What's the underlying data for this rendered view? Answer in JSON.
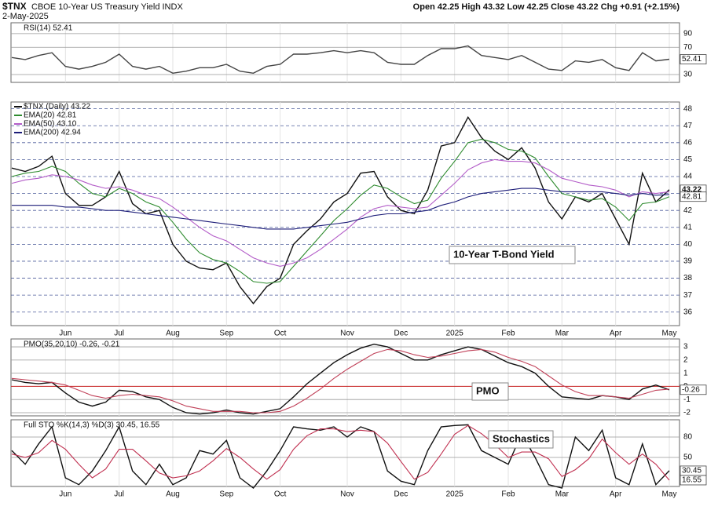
{
  "header": {
    "symbol": "$TNX",
    "name": "CBOE 10-Year US Treasury Yield INDX",
    "date": "2-May-2025",
    "quote": "Open 42.25  High 43.32  Low 42.25  Close 43.22  Chg +0.91 (+2.15%)"
  },
  "chart_data": [
    {
      "type": "line",
      "title": "RSI(14) 52.41",
      "ylim": [
        18.5,
        106
      ],
      "yticks": [
        30,
        70,
        90
      ],
      "grid": true,
      "series": [
        {
          "color": "#444444",
          "label_last": true,
          "values": [
            55,
            52,
            58,
            62,
            42,
            38,
            42,
            48,
            60,
            42,
            38,
            42,
            32,
            35,
            40,
            40,
            45,
            35,
            32,
            42,
            45,
            60,
            60,
            62,
            65,
            62,
            65,
            62,
            48,
            45,
            45,
            58,
            68,
            68,
            72,
            58,
            55,
            52,
            58,
            48,
            38,
            36,
            50,
            48,
            52,
            40,
            36,
            62,
            50,
            52.41
          ]
        }
      ]
    },
    {
      "type": "line",
      "ylim": [
        35.2,
        48.4
      ],
      "yticks": [
        36,
        37,
        38,
        39,
        40,
        41,
        42,
        43,
        44,
        45,
        46,
        47,
        48
      ],
      "grid": true,
      "categories": [
        null,
        null,
        null,
        null,
        "Jun",
        null,
        null,
        null,
        "Jul",
        null,
        null,
        null,
        "Aug",
        null,
        null,
        null,
        "Sep",
        null,
        null,
        null,
        "Oct",
        null,
        null,
        null,
        null,
        "Nov",
        null,
        null,
        null,
        "Dec",
        null,
        null,
        null,
        "2025",
        null,
        null,
        null,
        "Feb",
        null,
        null,
        null,
        "Mar",
        null,
        null,
        null,
        "Apr",
        null,
        null,
        null,
        "May"
      ],
      "annotation": "10-Year T-Bond Yield",
      "series": [
        {
          "name": "$TNX (Daily) 43.22",
          "color": "#111111",
          "label_last": true,
          "values": [
            44.5,
            44.3,
            44.6,
            45.2,
            43.0,
            42.3,
            42.3,
            42.8,
            44.3,
            42.4,
            41.8,
            42.0,
            40.0,
            39.0,
            38.6,
            38.5,
            38.9,
            37.5,
            36.5,
            37.5,
            38.0,
            40.0,
            40.8,
            41.5,
            42.5,
            43.0,
            44.2,
            44.3,
            42.8,
            42.0,
            41.8,
            43.2,
            45.8,
            46.0,
            47.5,
            46.3,
            45.5,
            45.0,
            45.7,
            44.5,
            42.5,
            41.5,
            42.8,
            42.5,
            43.0,
            41.5,
            40.0,
            44.2,
            42.5,
            43.22
          ]
        },
        {
          "name": "EMA(20) 42.81",
          "color": "#2e8b2e",
          "label_last": true,
          "values": [
            44.0,
            44.2,
            44.3,
            44.6,
            44.3,
            43.6,
            43.0,
            42.8,
            43.3,
            43.0,
            42.5,
            42.2,
            41.3,
            40.3,
            39.5,
            39.1,
            38.9,
            38.4,
            37.8,
            37.7,
            37.8,
            38.7,
            39.6,
            40.5,
            41.4,
            42.1,
            42.9,
            43.5,
            43.3,
            42.8,
            42.4,
            42.6,
            43.9,
            44.9,
            46.0,
            46.2,
            46.0,
            45.6,
            45.5,
            45.1,
            44.0,
            43.0,
            42.8,
            42.6,
            42.7,
            42.2,
            41.4,
            42.4,
            42.5,
            42.81
          ]
        },
        {
          "name": "EMA(50) 43.10",
          "color": "#b35cc8",
          "values": [
            43.6,
            43.8,
            43.9,
            44.1,
            44.0,
            43.8,
            43.5,
            43.3,
            43.4,
            43.2,
            42.9,
            42.7,
            42.2,
            41.6,
            41.0,
            40.5,
            40.2,
            39.7,
            39.2,
            38.9,
            38.7,
            38.9,
            39.2,
            39.7,
            40.3,
            40.9,
            41.6,
            42.1,
            42.3,
            42.2,
            42.1,
            42.2,
            42.9,
            43.6,
            44.4,
            44.8,
            45.0,
            44.9,
            44.9,
            44.8,
            44.4,
            43.9,
            43.7,
            43.5,
            43.4,
            43.2,
            42.8,
            43.1,
            43.0,
            43.1
          ]
        },
        {
          "name": "EMA(200) 42.94",
          "color": "#1c1c78",
          "values": [
            42.3,
            42.3,
            42.3,
            42.3,
            42.2,
            42.2,
            42.1,
            42.0,
            42.0,
            41.9,
            41.8,
            41.7,
            41.6,
            41.5,
            41.4,
            41.3,
            41.2,
            41.1,
            41.0,
            40.9,
            40.9,
            40.9,
            41.0,
            41.1,
            41.2,
            41.3,
            41.5,
            41.7,
            41.8,
            41.8,
            41.9,
            42.0,
            42.3,
            42.5,
            42.8,
            43.0,
            43.1,
            43.2,
            43.3,
            43.3,
            43.2,
            43.1,
            43.1,
            43.1,
            43.1,
            43.0,
            42.9,
            43.0,
            42.9,
            42.94
          ]
        }
      ]
    },
    {
      "type": "line",
      "title": "PMO(35,20,10) -0.26, -0.21",
      "ylim": [
        -2.24,
        3.6
      ],
      "yticks": [
        -2,
        -1,
        0,
        1,
        2,
        3
      ],
      "grid": true,
      "zero_line_color": "#cc2222",
      "annotation": "PMO",
      "series": [
        {
          "color": "#111111",
          "label_last": true,
          "values": [
            0.5,
            0.3,
            0.2,
            0.3,
            -0.5,
            -1.2,
            -1.5,
            -1.2,
            -0.3,
            -0.4,
            -0.8,
            -1.0,
            -1.6,
            -2.0,
            -2.1,
            -2.0,
            -1.8,
            -2.0,
            -2.1,
            -1.9,
            -1.7,
            -0.8,
            0.2,
            1.0,
            1.8,
            2.4,
            2.9,
            3.2,
            3.0,
            2.5,
            2.0,
            2.0,
            2.4,
            2.7,
            3.0,
            2.8,
            2.3,
            1.8,
            1.5,
            1.0,
            0.0,
            -0.8,
            -0.9,
            -1.0,
            -0.7,
            -0.8,
            -1.0,
            -0.2,
            0.1,
            -0.26
          ]
        },
        {
          "color": "#c04058",
          "values": [
            0.6,
            0.5,
            0.4,
            0.3,
            0.1,
            -0.3,
            -0.7,
            -0.9,
            -0.7,
            -0.6,
            -0.7,
            -0.8,
            -1.1,
            -1.5,
            -1.7,
            -1.9,
            -1.9,
            -1.9,
            -2.0,
            -2.0,
            -1.9,
            -1.5,
            -0.9,
            -0.2,
            0.6,
            1.3,
            1.9,
            2.5,
            2.8,
            2.7,
            2.4,
            2.2,
            2.3,
            2.5,
            2.7,
            2.8,
            2.6,
            2.2,
            1.9,
            1.5,
            0.8,
            0.1,
            -0.4,
            -0.7,
            -0.7,
            -0.8,
            -0.9,
            -0.6,
            -0.3,
            -0.21
          ]
        }
      ]
    },
    {
      "type": "line",
      "title": "Full STO %K(14,3) %D(3) 30.45, 16.55",
      "ylim": [
        7.3,
        105.4
      ],
      "yticks": [
        50,
        80
      ],
      "grid": true,
      "categories": [
        null,
        null,
        null,
        null,
        "Jun",
        null,
        null,
        null,
        "Jul",
        null,
        null,
        null,
        "Aug",
        null,
        null,
        null,
        "Sep",
        null,
        null,
        null,
        "Oct",
        null,
        null,
        null,
        null,
        "Nov",
        null,
        null,
        null,
        "Dec",
        null,
        null,
        null,
        "2025",
        null,
        null,
        null,
        "Feb",
        null,
        null,
        null,
        "Mar",
        null,
        null,
        null,
        "Apr",
        null,
        null,
        null,
        "May"
      ],
      "annotation": "Stochastics",
      "series": [
        {
          "color": "#111111",
          "label_last": true,
          "values": [
            60,
            40,
            70,
            95,
            20,
            10,
            30,
            60,
            95,
            30,
            10,
            40,
            10,
            20,
            60,
            55,
            75,
            20,
            5,
            30,
            60,
            95,
            92,
            90,
            95,
            80,
            95,
            88,
            30,
            15,
            10,
            60,
            95,
            97,
            98,
            60,
            50,
            40,
            85,
            50,
            10,
            5,
            80,
            60,
            90,
            20,
            10,
            70,
            10,
            30.45
          ]
        },
        {
          "color": "#c03050",
          "label_last": true,
          "values": [
            55,
            50,
            57,
            75,
            62,
            40,
            20,
            33,
            62,
            62,
            45,
            27,
            20,
            23,
            30,
            45,
            63,
            50,
            33,
            18,
            32,
            62,
            82,
            92,
            92,
            88,
            90,
            88,
            71,
            44,
            18,
            28,
            55,
            84,
            97,
            85,
            69,
            50,
            58,
            58,
            48,
            22,
            32,
            48,
            77,
            57,
            40,
            55,
            40,
            16.55
          ]
        }
      ]
    }
  ]
}
